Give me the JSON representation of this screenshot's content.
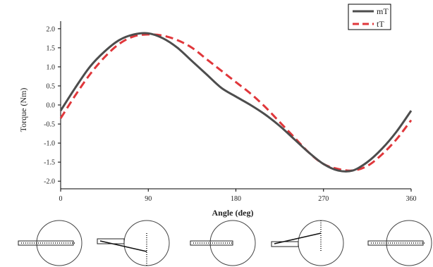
{
  "chart_data": {
    "type": "line",
    "xlabel": "Angle (deg)",
    "ylabel": "Torque (Nm)",
    "xlim": [
      0,
      360
    ],
    "ylim": [
      -2.2,
      2.2
    ],
    "x_ticks": [
      0,
      90,
      180,
      270,
      360
    ],
    "x_tick_labels": [
      "0",
      "90",
      "180",
      "270",
      "360"
    ],
    "y_ticks": [
      2.0,
      1.5,
      1.0,
      0.5,
      0.0,
      -0.5,
      -1.0,
      -1.5,
      -2.0
    ],
    "y_tick_labels": [
      "2.0",
      "1.5",
      "1.0",
      "0.5",
      "0.0",
      "-0.5",
      "-1.0",
      "-1.5",
      "-2.0"
    ],
    "grid": false,
    "legend_position": "top-right",
    "series": [
      {
        "name": "mT",
        "color": "#4d4d4d",
        "style": "solid",
        "x": [
          0,
          15,
          30,
          45,
          60,
          75,
          90,
          105,
          120,
          135,
          150,
          165,
          180,
          195,
          210,
          225,
          240,
          255,
          270,
          285,
          300,
          315,
          330,
          345,
          360
        ],
        "y": [
          -0.15,
          0.45,
          1.0,
          1.4,
          1.7,
          1.85,
          1.88,
          1.75,
          1.5,
          1.15,
          0.8,
          0.45,
          0.22,
          0.0,
          -0.25,
          -0.55,
          -0.9,
          -1.25,
          -1.55,
          -1.72,
          -1.72,
          -1.5,
          -1.15,
          -0.7,
          -0.15
        ]
      },
      {
        "name": "tT",
        "color": "#e0373b",
        "style": "dashed",
        "x": [
          0,
          15,
          30,
          45,
          60,
          75,
          90,
          105,
          120,
          135,
          150,
          165,
          180,
          195,
          210,
          225,
          240,
          255,
          270,
          285,
          300,
          315,
          330,
          345,
          360
        ],
        "y": [
          -0.35,
          0.25,
          0.8,
          1.25,
          1.6,
          1.8,
          1.85,
          1.82,
          1.7,
          1.5,
          1.2,
          0.9,
          0.6,
          0.3,
          -0.05,
          -0.45,
          -0.85,
          -1.25,
          -1.55,
          -1.68,
          -1.72,
          -1.6,
          -1.3,
          -0.9,
          -0.4
        ]
      }
    ]
  },
  "rotor_diagrams": [
    {
      "angle": 0
    },
    {
      "angle": 90
    },
    {
      "angle": 180
    },
    {
      "angle": 270
    },
    {
      "angle": 360
    }
  ]
}
